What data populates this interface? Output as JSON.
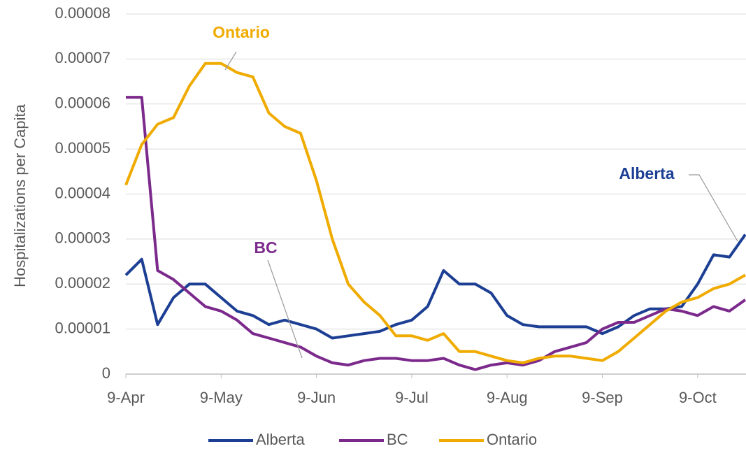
{
  "chart_data": {
    "type": "line",
    "y_label": "Hospitalizations per Capita",
    "categories": [
      "9-Apr",
      null,
      null,
      null,
      null,
      null,
      "9-May",
      null,
      null,
      null,
      null,
      null,
      "9-Jun",
      null,
      null,
      null,
      null,
      null,
      "9-Jul",
      null,
      null,
      null,
      null,
      null,
      "9-Aug",
      null,
      null,
      null,
      null,
      null,
      "9-Sep",
      null,
      null,
      null,
      null,
      null,
      "9-Oct",
      null,
      null,
      null
    ],
    "series": [
      {
        "name": "Alberta",
        "color": "#1c3f94",
        "values": [
          2.2e-05,
          2.55e-05,
          1.1e-05,
          1.7e-05,
          2e-05,
          2e-05,
          1.7e-05,
          1.4e-05,
          1.3e-05,
          1.1e-05,
          1.2e-05,
          1.1e-05,
          1e-05,
          8e-06,
          8.5e-06,
          9e-06,
          9.5e-06,
          1.1e-05,
          1.2e-05,
          1.5e-05,
          2.3e-05,
          2e-05,
          2e-05,
          1.8e-05,
          1.3e-05,
          1.1e-05,
          1.05e-05,
          1.05e-05,
          1.05e-05,
          1.05e-05,
          9e-06,
          1.05e-05,
          1.3e-05,
          1.45e-05,
          1.45e-05,
          1.5e-05,
          2e-05,
          2.65e-05,
          2.6e-05,
          3.1e-05
        ]
      },
      {
        "name": "BC",
        "color": "#7b2a8c",
        "values": [
          6.15e-05,
          6.15e-05,
          2.3e-05,
          2.1e-05,
          1.8e-05,
          1.5e-05,
          1.4e-05,
          1.2e-05,
          9e-06,
          8e-06,
          7e-06,
          6e-06,
          4e-06,
          2.5e-06,
          2e-06,
          3e-06,
          3.5e-06,
          3.5e-06,
          3e-06,
          3e-06,
          3.5e-06,
          2e-06,
          1e-06,
          2e-06,
          2.5e-06,
          2e-06,
          3e-06,
          5e-06,
          6e-06,
          7e-06,
          1e-05,
          1.15e-05,
          1.15e-05,
          1.3e-05,
          1.45e-05,
          1.4e-05,
          1.3e-05,
          1.5e-05,
          1.4e-05,
          1.65e-05
        ]
      },
      {
        "name": "Ontario",
        "color": "#f0ab00",
        "values": [
          4.2e-05,
          5.1e-05,
          5.55e-05,
          5.7e-05,
          6.4e-05,
          6.9e-05,
          6.9e-05,
          6.7e-05,
          6.6e-05,
          5.8e-05,
          5.5e-05,
          5.35e-05,
          4.3e-05,
          3e-05,
          2e-05,
          1.6e-05,
          1.3e-05,
          8.5e-06,
          8.5e-06,
          7.5e-06,
          9e-06,
          5e-06,
          5e-06,
          4e-06,
          3e-06,
          2.5e-06,
          3.5e-06,
          4e-06,
          4e-06,
          3.5e-06,
          3e-06,
          5e-06,
          8e-06,
          1.1e-05,
          1.4e-05,
          1.6e-05,
          1.7e-05,
          1.9e-05,
          2e-05,
          2.2e-05
        ]
      }
    ],
    "annotations": [
      "Ontario",
      "BC",
      "Alberta"
    ],
    "ylim": [
      0,
      8e-05
    ],
    "yticks": [
      0,
      1e-05,
      2e-05,
      3e-05,
      4e-05,
      5e-05,
      6e-05,
      7e-05,
      8e-05
    ],
    "grid": true,
    "legend": "bottom"
  }
}
